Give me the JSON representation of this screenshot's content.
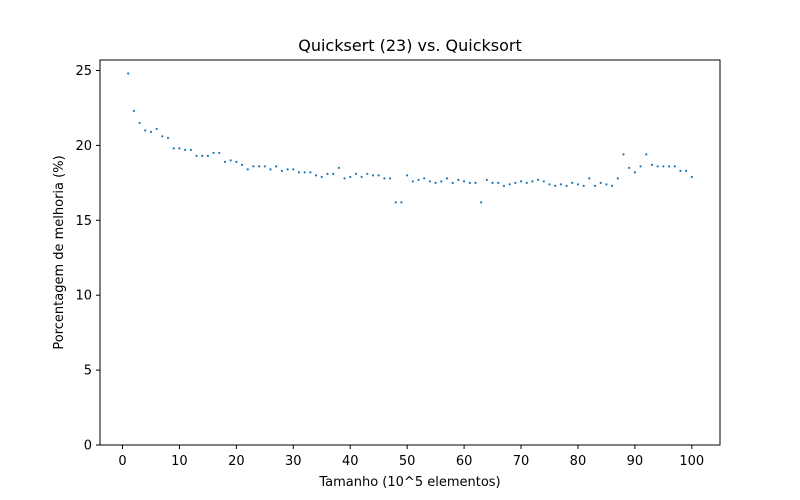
{
  "chart_data": {
    "type": "scatter",
    "title": "Quicksert (23) vs. Quicksort",
    "xlabel": "Tamanho (10^5 elementos)",
    "ylabel": "Porcentagem de melhoria (%)",
    "xlim": [
      -3.95,
      104.95
    ],
    "ylim": [
      0,
      25.7
    ],
    "xticks": [
      0,
      10,
      20,
      30,
      40,
      50,
      60,
      70,
      80,
      90,
      100
    ],
    "yticks": [
      0,
      5,
      10,
      15,
      20,
      25
    ],
    "grid": false,
    "marker_color": "#1f77b4",
    "x": [
      1,
      2,
      3,
      4,
      5,
      6,
      7,
      8,
      9,
      10,
      11,
      12,
      13,
      14,
      15,
      16,
      17,
      18,
      19,
      20,
      21,
      22,
      23,
      24,
      25,
      26,
      27,
      28,
      29,
      30,
      31,
      32,
      33,
      34,
      35,
      36,
      37,
      38,
      39,
      40,
      41,
      42,
      43,
      44,
      45,
      46,
      47,
      48,
      49,
      50,
      51,
      52,
      53,
      54,
      55,
      56,
      57,
      58,
      59,
      60,
      61,
      62,
      63,
      64,
      65,
      66,
      67,
      68,
      69,
      70,
      71,
      72,
      73,
      74,
      75,
      76,
      77,
      78,
      79,
      80,
      81,
      82,
      83,
      84,
      85,
      86,
      87,
      88,
      89,
      90,
      91,
      92,
      93,
      94,
      95,
      96,
      97,
      98,
      99,
      100
    ],
    "y": [
      24.8,
      22.3,
      21.5,
      21.0,
      20.9,
      21.1,
      20.6,
      20.5,
      19.8,
      19.8,
      19.7,
      19.7,
      19.3,
      19.3,
      19.3,
      19.5,
      19.5,
      18.9,
      19.0,
      18.9,
      18.7,
      18.4,
      18.6,
      18.6,
      18.6,
      18.4,
      18.6,
      18.3,
      18.4,
      18.4,
      18.2,
      18.2,
      18.2,
      18.0,
      17.9,
      18.1,
      18.1,
      18.5,
      17.8,
      17.9,
      18.1,
      17.9,
      18.1,
      18.0,
      18.0,
      17.8,
      17.8,
      16.2,
      16.2,
      18.0,
      17.6,
      17.7,
      17.8,
      17.6,
      17.5,
      17.6,
      17.8,
      17.5,
      17.7,
      17.6,
      17.5,
      17.5,
      16.2,
      17.7,
      17.5,
      17.5,
      17.3,
      17.4,
      17.5,
      17.6,
      17.5,
      17.6,
      17.7,
      17.6,
      17.4,
      17.3,
      17.4,
      17.3,
      17.5,
      17.4,
      17.3,
      17.8,
      17.3,
      17.5,
      17.4,
      17.3,
      17.8,
      19.4,
      18.5,
      18.2,
      18.6,
      19.4,
      18.7,
      18.6,
      18.6,
      18.6,
      18.6,
      18.3,
      18.3,
      17.9
    ]
  }
}
